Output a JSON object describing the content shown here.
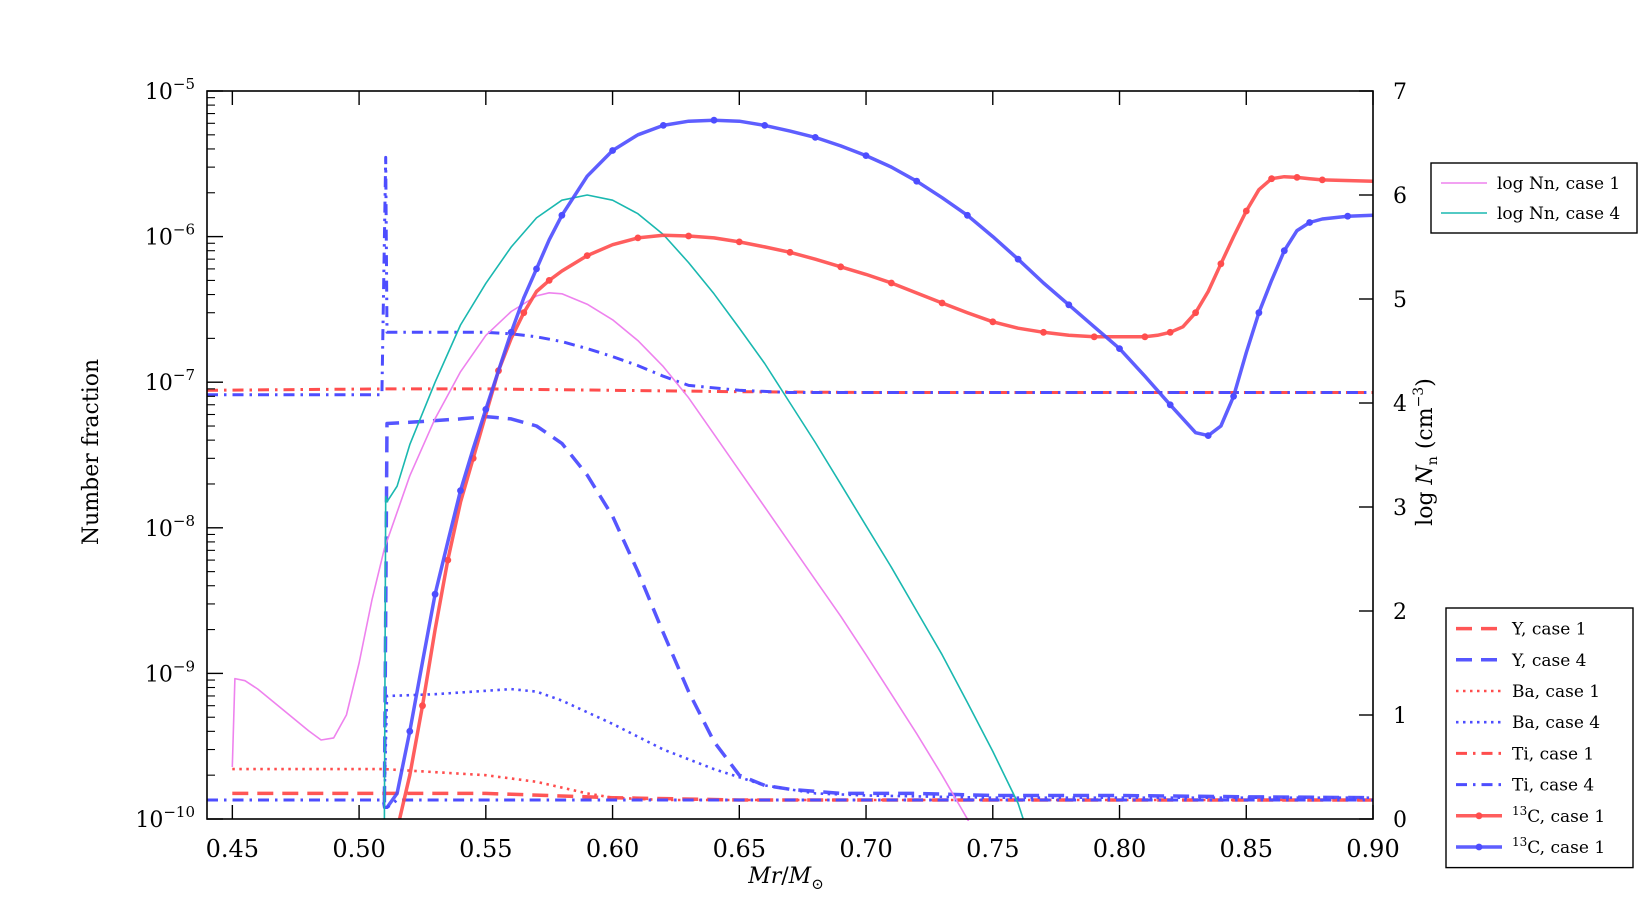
{
  "chart_data": {
    "type": "line",
    "xlabel": "Mr/M⊙",
    "ylabel": "Number fraction",
    "y2label": "log Nn (cm⁻³)",
    "xlim": [
      0.44,
      0.9
    ],
    "ylim": [
      1e-10,
      1e-05
    ],
    "yscale": "log",
    "y2lim": [
      0,
      7
    ],
    "xticks": [
      "0.45",
      "0.50",
      "0.55",
      "0.60",
      "0.65",
      "0.70",
      "0.75",
      "0.80",
      "0.85",
      "0.90"
    ],
    "yticks": [
      {
        "base": "10",
        "exp": "−5"
      },
      {
        "base": "10",
        "exp": "−6"
      },
      {
        "base": "10",
        "exp": "−7"
      },
      {
        "base": "10",
        "exp": "−8"
      },
      {
        "base": "10",
        "exp": "−9"
      },
      {
        "base": "10",
        "exp": "−10"
      }
    ],
    "y2ticks": [
      "7",
      "6",
      "5",
      "4",
      "3",
      "2",
      "1",
      "0"
    ],
    "legend_top": {
      "placement": "top-right, outside plot",
      "entries": [
        {
          "label": "log Nn, case 1",
          "color": "#ee82ee",
          "style": "thin"
        },
        {
          "label": "log Nn, case 4",
          "color": "#1ab8b0",
          "style": "thin"
        }
      ]
    },
    "legend_bottom": {
      "placement": "bottom-right, outside plot",
      "entries": [
        {
          "label": "Y, case 1",
          "color": "#ff4d4d",
          "style": "dashed"
        },
        {
          "label": "Y, case 4",
          "color": "#4d4dff",
          "style": "dashed"
        },
        {
          "label": "Ba, case 1",
          "color": "#ff4d4d",
          "style": "dotted"
        },
        {
          "label": "Ba, case 4",
          "color": "#4d4dff",
          "style": "dotted"
        },
        {
          "label": "Ti, case 1",
          "color": "#ff4d4d",
          "style": "dashdot"
        },
        {
          "label": "Ti, case 4",
          "color": "#4d4dff",
          "style": "dashdot"
        },
        {
          "label_sup": "13",
          "label_main": "C, case 1",
          "color": "#ff4d4d",
          "style": "solid-marker"
        },
        {
          "label_sup": "13",
          "label_main": "C, case 1",
          "color": "#4d4dff",
          "style": "solid-marker"
        }
      ]
    },
    "series": [
      {
        "key": "y1",
        "axis": "left",
        "color": "#ff4d4d",
        "style": "dashed",
        "x": [
          0.45,
          0.48,
          0.51,
          0.55,
          0.6,
          0.65,
          0.7,
          0.75,
          0.8,
          0.85,
          0.9
        ],
        "y": [
          1.5e-10,
          1.5e-10,
          1.5e-10,
          1.5e-10,
          1.4e-10,
          1.35e-10,
          1.35e-10,
          1.35e-10,
          1.35e-10,
          1.35e-10,
          1.35e-10
        ]
      },
      {
        "key": "y4",
        "axis": "left",
        "color": "#4d4dff",
        "style": "dashed",
        "x": [
          0.51,
          0.511,
          0.52,
          0.54,
          0.55,
          0.56,
          0.57,
          0.58,
          0.59,
          0.6,
          0.61,
          0.62,
          0.63,
          0.64,
          0.65,
          0.66,
          0.67,
          0.68,
          0.69,
          0.7,
          0.72,
          0.75,
          0.8,
          0.85,
          0.9
        ],
        "y": [
          1.3e-10,
          5.2e-08,
          5.3e-08,
          5.6e-08,
          5.8e-08,
          5.6e-08,
          5e-08,
          3.8e-08,
          2.3e-08,
          1.2e-08,
          5e-09,
          1.9e-09,
          7.5e-10,
          3.4e-10,
          2e-10,
          1.7e-10,
          1.6e-10,
          1.55e-10,
          1.5e-10,
          1.5e-10,
          1.5e-10,
          1.45e-10,
          1.45e-10,
          1.42e-10,
          1.4e-10
        ]
      },
      {
        "key": "ba1",
        "axis": "left",
        "color": "#ff4d4d",
        "style": "dotted",
        "x": [
          0.45,
          0.48,
          0.51,
          0.55,
          0.57,
          0.59,
          0.6,
          0.62,
          0.65,
          0.7,
          0.9
        ],
        "y": [
          2.2e-10,
          2.2e-10,
          2.2e-10,
          2e-10,
          1.8e-10,
          1.5e-10,
          1.4e-10,
          1.35e-10,
          1.35e-10,
          1.35e-10,
          1.35e-10
        ]
      },
      {
        "key": "ba4",
        "axis": "left",
        "color": "#4d4dff",
        "style": "dotted",
        "x": [
          0.51,
          0.511,
          0.53,
          0.56,
          0.57,
          0.58,
          0.6,
          0.62,
          0.64,
          0.66,
          0.68,
          0.7,
          0.75,
          0.9
        ],
        "y": [
          1.3e-10,
          7e-10,
          7.2e-10,
          7.8e-10,
          7.5e-10,
          6.5e-10,
          4.5e-10,
          3e-10,
          2.2e-10,
          1.7e-10,
          1.5e-10,
          1.45e-10,
          1.4e-10,
          1.4e-10
        ]
      },
      {
        "key": "ti1",
        "axis": "left",
        "color": "#ff4d4d",
        "style": "dashdot",
        "x": [
          0.44,
          0.51,
          0.55,
          0.6,
          0.65,
          0.7,
          0.8,
          0.9
        ],
        "y": [
          8.8e-08,
          9e-08,
          9e-08,
          8.8e-08,
          8.6e-08,
          8.5e-08,
          8.5e-08,
          8.5e-08
        ]
      },
      {
        "key": "ti4",
        "axis": "left",
        "color": "#4d4dff",
        "style": "dashdot",
        "x": [
          0.44,
          0.509,
          0.5105,
          0.511,
          0.52,
          0.55,
          0.56,
          0.57,
          0.58,
          0.59,
          0.6,
          0.61,
          0.62,
          0.63,
          0.65,
          0.67,
          0.7,
          0.8,
          0.9
        ],
        "y": [
          8.2e-08,
          8.2e-08,
          3.5e-06,
          2.2e-07,
          2.2e-07,
          2.2e-07,
          2.15e-07,
          2.05e-07,
          1.9e-07,
          1.7e-07,
          1.5e-07,
          1.3e-07,
          1.1e-07,
          9.5e-08,
          8.8e-08,
          8.5e-08,
          8.5e-08,
          8.5e-08,
          8.5e-08
        ]
      },
      {
        "key": "ti4b",
        "axis": "left",
        "color": "#4d4dff",
        "style": "dashdot",
        "x": [
          0.44,
          0.5095,
          0.51,
          0.511,
          0.515,
          0.52,
          0.55,
          0.9
        ],
        "y": [
          1.35e-10,
          1.35e-10,
          1.2e-10,
          1.2e-10,
          1.35e-10,
          1.35e-10,
          1.35e-10,
          1.35e-10
        ]
      },
      {
        "key": "nn1",
        "axis": "right",
        "color": "#ee82ee",
        "style": "thin",
        "x": [
          0.45,
          0.451,
          0.455,
          0.46,
          0.47,
          0.48,
          0.485,
          0.49,
          0.495,
          0.5,
          0.505,
          0.51,
          0.52,
          0.53,
          0.54,
          0.55,
          0.56,
          0.57,
          0.575,
          0.58,
          0.59,
          0.6,
          0.61,
          0.62,
          0.63,
          0.64,
          0.65,
          0.66,
          0.67,
          0.68,
          0.69,
          0.7,
          0.71,
          0.72,
          0.73,
          0.74,
          0.741
        ],
        "y": [
          0.5,
          1.35,
          1.33,
          1.25,
          1.05,
          0.85,
          0.76,
          0.78,
          1.0,
          1.5,
          2.1,
          2.6,
          3.3,
          3.85,
          4.3,
          4.65,
          4.88,
          5.03,
          5.06,
          5.05,
          4.95,
          4.8,
          4.6,
          4.35,
          4.05,
          3.7,
          3.35,
          3.0,
          2.65,
          2.3,
          1.95,
          1.58,
          1.2,
          0.82,
          0.42,
          0.0,
          -0.05
        ]
      },
      {
        "key": "nn4",
        "axis": "right",
        "color": "#1ab8b0",
        "style": "thin",
        "x": [
          0.51,
          0.5105,
          0.511,
          0.515,
          0.52,
          0.53,
          0.54,
          0.55,
          0.56,
          0.57,
          0.58,
          0.59,
          0.6,
          0.61,
          0.62,
          0.63,
          0.64,
          0.65,
          0.66,
          0.67,
          0.68,
          0.69,
          0.7,
          0.71,
          0.72,
          0.73,
          0.74,
          0.75,
          0.76,
          0.762
        ],
        "y": [
          0.0,
          3.1,
          3.05,
          3.2,
          3.6,
          4.2,
          4.75,
          5.15,
          5.5,
          5.78,
          5.95,
          6.0,
          5.95,
          5.82,
          5.62,
          5.35,
          5.05,
          4.72,
          4.38,
          4.0,
          3.62,
          3.22,
          2.82,
          2.42,
          2.0,
          1.58,
          1.12,
          0.65,
          0.15,
          0.0
        ]
      },
      {
        "key": "c13a",
        "axis": "left",
        "color": "#ff4d4d",
        "style": "solid-marker",
        "x": [
          0.516,
          0.52,
          0.525,
          0.53,
          0.535,
          0.54,
          0.545,
          0.55,
          0.555,
          0.56,
          0.565,
          0.57,
          0.575,
          0.58,
          0.59,
          0.6,
          0.61,
          0.62,
          0.63,
          0.64,
          0.65,
          0.66,
          0.67,
          0.68,
          0.69,
          0.7,
          0.71,
          0.72,
          0.73,
          0.74,
          0.75,
          0.76,
          0.77,
          0.78,
          0.79,
          0.8,
          0.81,
          0.815,
          0.82,
          0.825,
          0.83,
          0.835,
          0.84,
          0.845,
          0.85,
          0.855,
          0.86,
          0.865,
          0.87,
          0.875,
          0.88,
          0.9
        ],
        "y": [
          1e-10,
          2e-10,
          6e-10,
          2e-09,
          6e-09,
          1.5e-08,
          3e-08,
          6e-08,
          1.2e-07,
          2e-07,
          3e-07,
          4.2e-07,
          5e-07,
          5.8e-07,
          7.4e-07,
          8.8e-07,
          9.8e-07,
          1.02e-06,
          1.01e-06,
          9.8e-07,
          9.2e-07,
          8.5e-07,
          7.8e-07,
          7e-07,
          6.2e-07,
          5.5e-07,
          4.8e-07,
          4.1e-07,
          3.5e-07,
          3e-07,
          2.6e-07,
          2.35e-07,
          2.2e-07,
          2.1e-07,
          2.05e-07,
          2.05e-07,
          2.05e-07,
          2.1e-07,
          2.2e-07,
          2.4e-07,
          3e-07,
          4.2e-07,
          6.5e-07,
          1e-06,
          1.5e-06,
          2.1e-06,
          2.5e-06,
          2.58e-06,
          2.55e-06,
          2.5e-06,
          2.45e-06,
          2.4e-06
        ]
      },
      {
        "key": "c13b",
        "axis": "left",
        "color": "#4d4dff",
        "style": "solid-marker",
        "x": [
          0.511,
          0.515,
          0.52,
          0.525,
          0.53,
          0.535,
          0.54,
          0.545,
          0.55,
          0.555,
          0.56,
          0.565,
          0.57,
          0.575,
          0.58,
          0.59,
          0.6,
          0.61,
          0.62,
          0.63,
          0.64,
          0.65,
          0.66,
          0.67,
          0.68,
          0.69,
          0.7,
          0.71,
          0.72,
          0.73,
          0.74,
          0.75,
          0.76,
          0.77,
          0.78,
          0.79,
          0.8,
          0.81,
          0.82,
          0.83,
          0.835,
          0.84,
          0.845,
          0.85,
          0.855,
          0.86,
          0.865,
          0.87,
          0.875,
          0.88,
          0.89,
          0.9
        ],
        "y": [
          1.2e-10,
          1.5e-10,
          4e-10,
          1.2e-09,
          3.5e-09,
          8e-09,
          1.8e-08,
          3.5e-08,
          6.5e-08,
          1.2e-07,
          2.2e-07,
          3.8e-07,
          6e-07,
          9.5e-07,
          1.4e-06,
          2.6e-06,
          3.9e-06,
          5e-06,
          5.8e-06,
          6.2e-06,
          6.3e-06,
          6.2e-06,
          5.8e-06,
          5.3e-06,
          4.8e-06,
          4.2e-06,
          3.6e-06,
          3e-06,
          2.4e-06,
          1.85e-06,
          1.4e-06,
          1e-06,
          7e-07,
          4.8e-07,
          3.4e-07,
          2.4e-07,
          1.7e-07,
          1.1e-07,
          7e-08,
          4.5e-08,
          4.3e-08,
          5e-08,
          8e-08,
          1.6e-07,
          3e-07,
          5e-07,
          8e-07,
          1.1e-06,
          1.25e-06,
          1.32e-06,
          1.38e-06,
          1.4e-06
        ]
      }
    ]
  }
}
